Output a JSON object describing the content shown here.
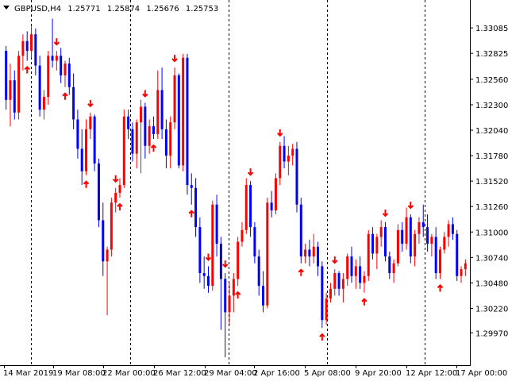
{
  "chart_data": {
    "type": "candlestick",
    "header": {
      "symbol": "GBPUSD,H4",
      "open": "1.25771",
      "high": "1.25874",
      "low": "1.25676",
      "close": "1.25753"
    },
    "y_ticks": [
      "1.33085",
      "1.32825",
      "1.32560",
      "1.32300",
      "1.32040",
      "1.31780",
      "1.31520",
      "1.31260",
      "1.31000",
      "1.30740",
      "1.30480",
      "1.30220",
      "1.29970"
    ],
    "x_ticks": [
      "14 Mar 2019",
      "19 Mar 08:00",
      "22 Mar 00:00",
      "26 Mar 12:00",
      "29 Mar 04:00",
      "2 Apr 16:00",
      "5 Apr 08:00",
      "9 Apr 20:00",
      "12 Apr 12:00",
      "17 Apr 00:00"
    ],
    "ylim": [
      1.2964,
      1.3337
    ],
    "grid": "vertical dashed separators",
    "colors": {
      "bull": "#ff0000",
      "bear": "#0000ff",
      "fractal": "#ff0000",
      "grid": "#000000",
      "axis": "#000000",
      "background": "#ffffff"
    },
    "candles": [
      [
        1.3285,
        1.329,
        1.3225,
        1.3235
      ],
      [
        1.3235,
        1.3272,
        1.3208,
        1.3255
      ],
      [
        1.3255,
        1.3265,
        1.3215,
        1.3222
      ],
      [
        1.3222,
        1.3285,
        1.3215,
        1.328
      ],
      [
        1.328,
        1.3302,
        1.3265,
        1.3295
      ],
      [
        1.3295,
        1.3305,
        1.3275,
        1.3285
      ],
      [
        1.3285,
        1.331,
        1.3278,
        1.3302
      ],
      [
        1.3302,
        1.3308,
        1.326,
        1.327
      ],
      [
        1.327,
        1.328,
        1.3218,
        1.3225
      ],
      [
        1.3225,
        1.3245,
        1.3215,
        1.3238
      ],
      [
        1.3238,
        1.3285,
        1.323,
        1.328
      ],
      [
        1.328,
        1.3318,
        1.3268,
        1.3275
      ],
      [
        1.3275,
        1.3285,
        1.3265,
        1.328
      ],
      [
        1.328,
        1.3288,
        1.3252,
        1.326
      ],
      [
        1.326,
        1.3275,
        1.3248,
        1.3272
      ],
      [
        1.3272,
        1.3278,
        1.324,
        1.3248
      ],
      [
        1.3248,
        1.3262,
        1.3205,
        1.3215
      ],
      [
        1.3215,
        1.3225,
        1.3175,
        1.3185
      ],
      [
        1.3185,
        1.3205,
        1.3148,
        1.3162
      ],
      [
        1.3162,
        1.3215,
        1.3158,
        1.3205
      ],
      [
        1.3205,
        1.3222,
        1.3195,
        1.3218
      ],
      [
        1.3218,
        1.322,
        1.3162,
        1.317
      ],
      [
        1.317,
        1.3175,
        1.3105,
        1.3112
      ],
      [
        1.3112,
        1.313,
        1.3055,
        1.307
      ],
      [
        1.307,
        1.3085,
        1.3015,
        1.3082
      ],
      [
        1.3082,
        1.3135,
        1.3075,
        1.313
      ],
      [
        1.313,
        1.3145,
        1.312,
        1.314
      ],
      [
        1.314,
        1.3155,
        1.3135,
        1.3148
      ],
      [
        1.3148,
        1.3225,
        1.3145,
        1.3218
      ],
      [
        1.3218,
        1.3225,
        1.3195,
        1.3205
      ],
      [
        1.3205,
        1.3212,
        1.3172,
        1.318
      ],
      [
        1.318,
        1.3215,
        1.3165,
        1.3212
      ],
      [
        1.3212,
        1.3235,
        1.316,
        1.3228
      ],
      [
        1.3228,
        1.3232,
        1.3175,
        1.3188
      ],
      [
        1.3188,
        1.3215,
        1.318,
        1.3208
      ],
      [
        1.3208,
        1.3218,
        1.3195,
        1.32
      ],
      [
        1.32,
        1.3265,
        1.3195,
        1.3245
      ],
      [
        1.3245,
        1.3268,
        1.3195,
        1.3205
      ],
      [
        1.3205,
        1.3215,
        1.3165,
        1.3178
      ],
      [
        1.3178,
        1.3218,
        1.3165,
        1.3212
      ],
      [
        1.3212,
        1.3268,
        1.3205,
        1.326
      ],
      [
        1.326,
        1.3262,
        1.3165,
        1.3168
      ],
      [
        1.3168,
        1.3282,
        1.3162,
        1.3278
      ],
      [
        1.3278,
        1.3282,
        1.3138,
        1.3148
      ],
      [
        1.3148,
        1.316,
        1.3128,
        1.3145
      ],
      [
        1.3145,
        1.3155,
        1.3095,
        1.3105
      ],
      [
        1.3105,
        1.3115,
        1.3048,
        1.3058
      ],
      [
        1.3058,
        1.3075,
        1.3042,
        1.3055
      ],
      [
        1.3055,
        1.3065,
        1.3038,
        1.3045
      ],
      [
        1.3045,
        1.3132,
        1.304,
        1.3128
      ],
      [
        1.3128,
        1.3138,
        1.3075,
        1.3088
      ],
      [
        1.3088,
        1.3095,
        1.3,
        1.3052
      ],
      [
        1.3052,
        1.3058,
        1.2972,
        1.3018
      ],
      [
        1.3018,
        1.3048,
        1.3005,
        1.3035
      ],
      [
        1.3035,
        1.3058,
        1.3018,
        1.3052
      ],
      [
        1.3052,
        1.3095,
        1.3045,
        1.309
      ],
      [
        1.309,
        1.311,
        1.3085,
        1.3102
      ],
      [
        1.3102,
        1.3155,
        1.3098,
        1.3148
      ],
      [
        1.3148,
        1.3152,
        1.3095,
        1.3105
      ],
      [
        1.3105,
        1.311,
        1.3068,
        1.3075
      ],
      [
        1.3075,
        1.3082,
        1.3035,
        1.3045
      ],
      [
        1.3045,
        1.306,
        1.3018,
        1.3025
      ],
      [
        1.3025,
        1.3135,
        1.3022,
        1.313
      ],
      [
        1.313,
        1.3142,
        1.3115,
        1.3122
      ],
      [
        1.3122,
        1.316,
        1.3118,
        1.3155
      ],
      [
        1.3155,
        1.3192,
        1.3148,
        1.3188
      ],
      [
        1.3188,
        1.3198,
        1.3165,
        1.3172
      ],
      [
        1.3172,
        1.3188,
        1.3158,
        1.3178
      ],
      [
        1.3178,
        1.319,
        1.3168,
        1.3185
      ],
      [
        1.3185,
        1.3192,
        1.312,
        1.3128
      ],
      [
        1.3128,
        1.3135,
        1.3068,
        1.3075
      ],
      [
        1.3075,
        1.3088,
        1.3068,
        1.3082
      ],
      [
        1.3082,
        1.3092,
        1.3065,
        1.3075
      ],
      [
        1.3075,
        1.3098,
        1.3068,
        1.3085
      ],
      [
        1.3085,
        1.309,
        1.3055,
        1.3065
      ],
      [
        1.3065,
        1.307,
        1.3002,
        1.301
      ],
      [
        1.301,
        1.3038,
        1.3005,
        1.3032
      ],
      [
        1.3032,
        1.3048,
        1.3028,
        1.3042
      ],
      [
        1.3042,
        1.3062,
        1.3035,
        1.3058
      ],
      [
        1.3058,
        1.306,
        1.3035,
        1.3042
      ],
      [
        1.3042,
        1.3058,
        1.3028,
        1.3052
      ],
      [
        1.3052,
        1.3078,
        1.3045,
        1.3075
      ],
      [
        1.3075,
        1.3085,
        1.3048,
        1.3055
      ],
      [
        1.3055,
        1.3072,
        1.3042,
        1.3065
      ],
      [
        1.3065,
        1.3075,
        1.3042,
        1.3048
      ],
      [
        1.3048,
        1.306,
        1.3038,
        1.3055
      ],
      [
        1.3055,
        1.3102,
        1.305,
        1.3098
      ],
      [
        1.3098,
        1.3105,
        1.3072,
        1.3078
      ],
      [
        1.3078,
        1.3098,
        1.3062,
        1.3095
      ],
      [
        1.3095,
        1.3112,
        1.3085,
        1.3105
      ],
      [
        1.3105,
        1.311,
        1.307,
        1.3075
      ],
      [
        1.3075,
        1.308,
        1.3052,
        1.3058
      ],
      [
        1.3058,
        1.3072,
        1.3048,
        1.3068
      ],
      [
        1.3068,
        1.3108,
        1.3065,
        1.3102
      ],
      [
        1.3102,
        1.311,
        1.308,
        1.3088
      ],
      [
        1.3088,
        1.3125,
        1.3082,
        1.3115
      ],
      [
        1.3115,
        1.3118,
        1.3068,
        1.3075
      ],
      [
        1.3075,
        1.3102,
        1.3065,
        1.3098
      ],
      [
        1.3098,
        1.3115,
        1.3088,
        1.311
      ],
      [
        1.311,
        1.3128,
        1.3095,
        1.3105
      ],
      [
        1.3105,
        1.3118,
        1.308,
        1.3088
      ],
      [
        1.3088,
        1.3098,
        1.3075,
        1.3095
      ],
      [
        1.3095,
        1.3105,
        1.3052,
        1.3058
      ],
      [
        1.3058,
        1.3085,
        1.3052,
        1.3082
      ],
      [
        1.3082,
        1.31,
        1.3078,
        1.3095
      ],
      [
        1.3095,
        1.3112,
        1.3085,
        1.3108
      ],
      [
        1.3108,
        1.3115,
        1.3092,
        1.3098
      ],
      [
        1.3098,
        1.3102,
        1.305,
        1.3055
      ],
      [
        1.3055,
        1.3065,
        1.3048,
        1.3062
      ],
      [
        1.3062,
        1.3072,
        1.3055,
        1.3068
      ]
    ],
    "fractals": [
      {
        "i": 5,
        "dir": "up"
      },
      {
        "i": 12,
        "dir": "down"
      },
      {
        "i": 14,
        "dir": "up"
      },
      {
        "i": 19,
        "dir": "up"
      },
      {
        "i": 20,
        "dir": "down"
      },
      {
        "i": 26,
        "dir": "down"
      },
      {
        "i": 27,
        "dir": "up"
      },
      {
        "i": 33,
        "dir": "down"
      },
      {
        "i": 35,
        "dir": "up"
      },
      {
        "i": 40,
        "dir": "down"
      },
      {
        "i": 44,
        "dir": "up"
      },
      {
        "i": 48,
        "dir": "down"
      },
      {
        "i": 52,
        "dir": "down"
      },
      {
        "i": 55,
        "dir": "up"
      },
      {
        "i": 58,
        "dir": "down"
      },
      {
        "i": 65,
        "dir": "down"
      },
      {
        "i": 70,
        "dir": "up"
      },
      {
        "i": 75,
        "dir": "up"
      },
      {
        "i": 78,
        "dir": "down"
      },
      {
        "i": 85,
        "dir": "up"
      },
      {
        "i": 90,
        "dir": "down"
      },
      {
        "i": 96,
        "dir": "down"
      },
      {
        "i": 103,
        "dir": "up"
      }
    ]
  }
}
